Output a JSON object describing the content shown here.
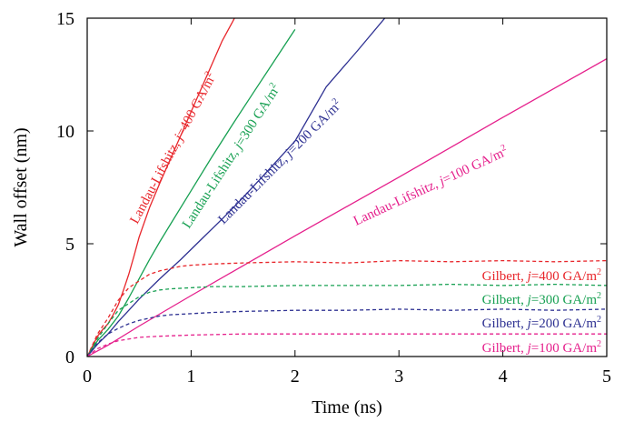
{
  "chart_data": {
    "type": "line",
    "xlabel": "Time (ns)",
    "ylabel": "Wall offset (nm)",
    "xlim": [
      0,
      5
    ],
    "ylim": [
      0,
      15
    ],
    "xticks": [
      0,
      1,
      2,
      3,
      4,
      5
    ],
    "yticks": [
      0,
      5,
      10,
      15
    ],
    "grid": false,
    "legend": "inline labels",
    "series": [
      {
        "name": "Landau-Lifshitz, j=400 GA/m²",
        "label": {
          "pre": "Landau-Lifshitz, ",
          "j": "j",
          "post": "=400 GA/m",
          "sup": "2"
        },
        "color": "#e8262b",
        "style": "solid",
        "x": [
          0,
          0.05,
          0.1,
          0.15,
          0.2,
          0.25,
          0.3,
          0.35,
          0.4,
          0.45,
          0.5,
          0.6,
          0.7,
          0.8,
          0.9,
          1.0,
          1.1,
          1.2,
          1.3,
          1.4,
          1.45,
          1.5
        ],
        "y": [
          0,
          0.45,
          0.9,
          1.2,
          1.45,
          1.85,
          2.3,
          2.95,
          3.65,
          4.45,
          5.3,
          6.6,
          7.7,
          8.75,
          9.8,
          10.85,
          11.9,
          12.95,
          14.0,
          14.85,
          15.3,
          15.7
        ]
      },
      {
        "name": "Landau-Lifshitz, j=300 GA/m²",
        "label": {
          "pre": "Landau-Lifshitz, ",
          "j": "j",
          "post": "=300 GA/m",
          "sup": "2"
        },
        "color": "#17a052",
        "style": "solid",
        "x": [
          0,
          0.05,
          0.1,
          0.2,
          0.3,
          0.4,
          0.5,
          0.6,
          0.7,
          0.8,
          1.0,
          1.2,
          1.4,
          1.6,
          1.8,
          2.0
        ],
        "y": [
          0,
          0.35,
          0.7,
          1.2,
          1.8,
          2.6,
          3.45,
          4.3,
          5.1,
          5.85,
          7.35,
          8.85,
          10.3,
          11.7,
          13.1,
          14.5
        ]
      },
      {
        "name": "Landau-Lifshitz, j=200 GA/m²",
        "label": {
          "pre": "Landau-Lifshitz, ",
          "j": "j",
          "post": "=200 GA/m",
          "sup": "2"
        },
        "color": "#2e3192",
        "style": "solid",
        "x": [
          0,
          0.1,
          0.2,
          0.3,
          0.4,
          0.5,
          0.7,
          0.9,
          1.1,
          1.3,
          1.5,
          1.7,
          2.0,
          2.3,
          2.6,
          2.9
        ],
        "y": [
          0,
          0.55,
          1.0,
          1.55,
          2.05,
          2.55,
          3.45,
          4.3,
          5.2,
          6.1,
          7.05,
          8.05,
          9.55,
          11.95,
          13.55,
          15.2
        ]
      },
      {
        "name": "Landau-Lifshitz, j=100 GA/m²",
        "label": {
          "pre": "Landau-Lifshitz, ",
          "j": "j",
          "post": "=100 GA/m",
          "sup": "2"
        },
        "color": "#e5208c",
        "style": "solid",
        "x": [
          0,
          0.2,
          0.5,
          1.0,
          2.0,
          3.0,
          4.0,
          5.0
        ],
        "y": [
          0,
          0.5,
          1.35,
          2.7,
          5.35,
          7.95,
          10.6,
          13.2
        ]
      },
      {
        "name": "Gilbert, j=400 GA/m²",
        "label": {
          "pre": "Gilbert, ",
          "j": "j",
          "post": "=400 GA/m",
          "sup": "2"
        },
        "color": "#e8262b",
        "style": "dashed",
        "x": [
          0,
          0.05,
          0.1,
          0.2,
          0.3,
          0.4,
          0.5,
          0.6,
          0.7,
          0.8,
          0.9,
          1.0,
          1.2,
          1.5,
          2.0,
          2.5,
          3.0,
          3.5,
          4.0,
          4.5,
          5.0
        ],
        "y": [
          0,
          0.5,
          1.0,
          1.7,
          2.5,
          3.05,
          3.35,
          3.65,
          3.8,
          3.9,
          4.0,
          4.05,
          4.1,
          4.15,
          4.2,
          4.15,
          4.25,
          4.2,
          4.25,
          4.2,
          4.25
        ]
      },
      {
        "name": "Gilbert, j=300 GA/m²",
        "label": {
          "pre": "Gilbert, ",
          "j": "j",
          "post": "=300 GA/m",
          "sup": "2"
        },
        "color": "#17a052",
        "style": "dashed",
        "x": [
          0,
          0.05,
          0.1,
          0.2,
          0.3,
          0.4,
          0.5,
          0.6,
          0.7,
          0.8,
          1.0,
          1.2,
          1.5,
          2.0,
          2.5,
          3.0,
          3.5,
          4.0,
          4.5,
          5.0
        ],
        "y": [
          0,
          0.4,
          0.8,
          1.45,
          2.05,
          2.35,
          2.65,
          2.85,
          2.95,
          3.0,
          3.05,
          3.1,
          3.1,
          3.15,
          3.15,
          3.15,
          3.2,
          3.15,
          3.2,
          3.15
        ]
      },
      {
        "name": "Gilbert, j=200 GA/m²",
        "label": {
          "pre": "Gilbert, ",
          "j": "j",
          "post": "=200 GA/m",
          "sup": "2"
        },
        "color": "#2e3192",
        "style": "dashed",
        "x": [
          0,
          0.1,
          0.2,
          0.3,
          0.4,
          0.5,
          0.6,
          0.7,
          0.8,
          1.0,
          1.2,
          1.5,
          2.0,
          2.5,
          3.0,
          3.5,
          4.0,
          4.5,
          5.0
        ],
        "y": [
          0,
          0.6,
          1.0,
          1.25,
          1.45,
          1.6,
          1.7,
          1.8,
          1.85,
          1.9,
          1.95,
          2.0,
          2.05,
          2.05,
          2.1,
          2.05,
          2.1,
          2.05,
          2.1
        ]
      },
      {
        "name": "Gilbert, j=100 GA/m²",
        "label": {
          "pre": "Gilbert, ",
          "j": "j",
          "post": "=100 GA/m",
          "sup": "2"
        },
        "color": "#e5208c",
        "style": "dashed",
        "x": [
          0,
          0.1,
          0.2,
          0.3,
          0.5,
          0.7,
          1.0,
          1.5,
          2.0,
          2.5,
          3.0,
          3.5,
          4.0,
          4.5,
          5.0
        ],
        "y": [
          0,
          0.35,
          0.55,
          0.7,
          0.85,
          0.9,
          0.95,
          1.0,
          1.0,
          1.0,
          1.0,
          1.0,
          1.0,
          1.0,
          1.0
        ]
      }
    ]
  }
}
